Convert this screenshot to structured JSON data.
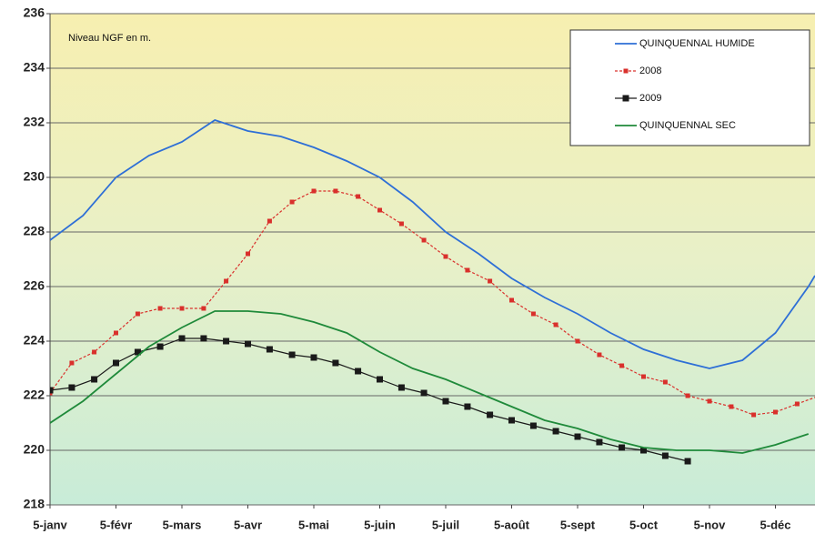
{
  "chart_data": {
    "type": "line",
    "annotation": "Niveau NGF en m.",
    "xlim": [
      0,
      11.6
    ],
    "xticks": [
      {
        "value": 0,
        "label": "5-janv"
      },
      {
        "value": 1,
        "label": "5-févr"
      },
      {
        "value": 2,
        "label": "5-mars"
      },
      {
        "value": 3,
        "label": "5-avr"
      },
      {
        "value": 4,
        "label": "5-mai"
      },
      {
        "value": 5,
        "label": "5-juin"
      },
      {
        "value": 6,
        "label": "5-juil"
      },
      {
        "value": 7,
        "label": "5-août"
      },
      {
        "value": 8,
        "label": "5-sept"
      },
      {
        "value": 9,
        "label": "5-oct"
      },
      {
        "value": 10,
        "label": "5-nov"
      },
      {
        "value": 11,
        "label": "5-déc"
      }
    ],
    "ylim": [
      218,
      236
    ],
    "yticks": [
      218,
      220,
      222,
      224,
      226,
      228,
      230,
      232,
      234,
      236
    ],
    "grid": true,
    "legend": "top-right",
    "series": [
      {
        "name": "QUINQUENNAL HUMIDE",
        "color": "#2e6fd6",
        "marker": false,
        "x": [
          0,
          0.5,
          1,
          1.5,
          2,
          2.5,
          3,
          3.5,
          4,
          4.5,
          5,
          5.5,
          6,
          6.5,
          7,
          7.5,
          8,
          8.5,
          9,
          9.5,
          10,
          10.5,
          11,
          11.5,
          11.6
        ],
        "values": [
          227.7,
          228.6,
          230.0,
          230.8,
          231.3,
          232.1,
          231.7,
          231.5,
          231.1,
          230.6,
          230.0,
          229.1,
          228.0,
          227.2,
          226.3,
          225.6,
          225.0,
          224.3,
          223.7,
          223.3,
          223.0,
          223.3,
          224.3,
          226.0,
          226.4
        ]
      },
      {
        "name": "2008",
        "color": "#d9302c",
        "marker": true,
        "dashed": true,
        "x": [
          0,
          0.33,
          0.67,
          1,
          1.33,
          1.67,
          2,
          2.33,
          2.67,
          3,
          3.33,
          3.67,
          4,
          4.33,
          4.67,
          5,
          5.33,
          5.67,
          6,
          6.33,
          6.67,
          7,
          7.33,
          7.67,
          8,
          8.33,
          8.67,
          9,
          9.33,
          9.67,
          10,
          10.33,
          10.67,
          11,
          11.33,
          11.67
        ],
        "values": [
          222.1,
          223.2,
          223.6,
          224.3,
          225.0,
          225.2,
          225.2,
          225.2,
          226.2,
          227.2,
          228.4,
          229.1,
          229.5,
          229.5,
          229.3,
          228.8,
          228.3,
          227.7,
          227.1,
          226.6,
          226.2,
          225.5,
          225.0,
          224.6,
          224.0,
          223.5,
          223.1,
          222.7,
          222.5,
          222.0,
          221.8,
          221.6,
          221.3,
          221.4,
          221.7,
          222.0
        ]
      },
      {
        "name": "2009",
        "color": "#1a1a1a",
        "marker": true,
        "x": [
          0,
          0.33,
          0.67,
          1,
          1.33,
          1.67,
          2,
          2.33,
          2.67,
          3,
          3.33,
          3.67,
          4,
          4.33,
          4.67,
          5,
          5.33,
          5.67,
          6,
          6.33,
          6.67,
          7,
          7.33,
          7.67,
          8,
          8.33,
          8.67,
          9,
          9.33,
          9.67
        ],
        "values": [
          222.2,
          222.3,
          222.6,
          223.2,
          223.6,
          223.8,
          224.1,
          224.1,
          224.0,
          223.9,
          223.7,
          223.5,
          223.4,
          223.2,
          222.9,
          222.6,
          222.3,
          222.1,
          221.8,
          221.6,
          221.3,
          221.1,
          220.9,
          220.7,
          220.5,
          220.3,
          220.1,
          220.0,
          219.8,
          219.6
        ]
      },
      {
        "name": "QUINQUENNAL SEC",
        "color": "#1f8a3a",
        "marker": false,
        "x": [
          0,
          0.5,
          1,
          1.5,
          2,
          2.5,
          3,
          3.5,
          4,
          4.5,
          5,
          5.5,
          6,
          6.5,
          7,
          7.5,
          8,
          8.5,
          9,
          9.5,
          10,
          10.5,
          11,
          11.5
        ],
        "values": [
          221.0,
          221.8,
          222.8,
          223.8,
          224.5,
          225.1,
          225.1,
          225.0,
          224.7,
          224.3,
          223.6,
          223.0,
          222.6,
          222.1,
          221.6,
          221.1,
          220.8,
          220.4,
          220.1,
          220.0,
          220.0,
          219.9,
          220.2,
          220.6
        ]
      }
    ]
  }
}
